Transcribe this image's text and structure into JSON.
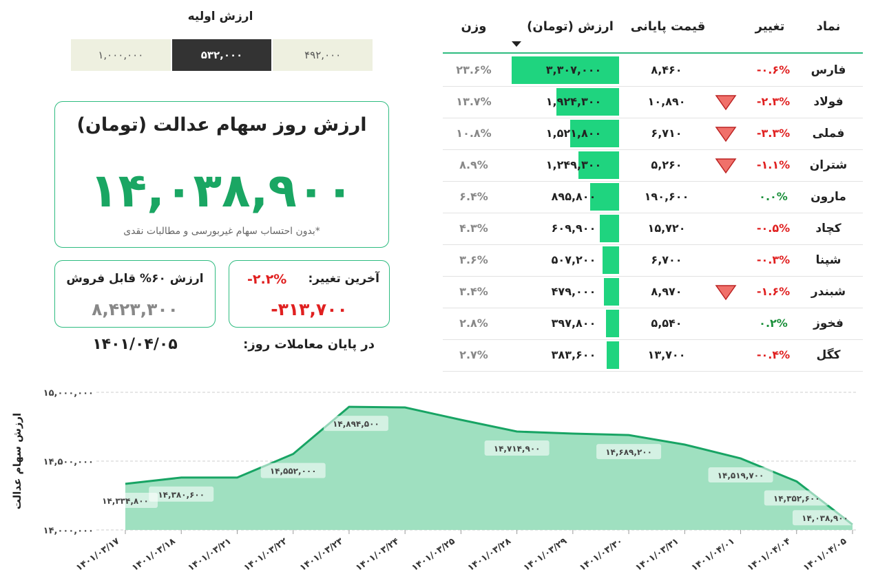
{
  "initial_value": {
    "label": "ارزش اولیه",
    "options": [
      "۱,۰۰۰,۰۰۰",
      "۵۳۲,۰۰۰",
      "۴۹۲,۰۰۰"
    ],
    "selected_index": 1
  },
  "main_card": {
    "title": "ارزش روز سهام عدالت (تومان)",
    "value": "۱۴,۰۳۸,۹۰۰",
    "note": "*بدون احتساب سهام غیربورسی و مطالبات نقدی"
  },
  "change_card": {
    "label": "آخرین تغییر:",
    "percent": "-۲.۲%",
    "amount": "-۳۱۳,۷۰۰"
  },
  "sellable_card": {
    "label": "ارزش ۶۰% قابل فروش",
    "amount": "۸,۴۲۳,۳۰۰"
  },
  "trading_day": {
    "label": "در پایان معاملات روز:",
    "date": "۱۴۰۱/۰۴/۰۵"
  },
  "table": {
    "headers": {
      "symbol": "نماد",
      "change": "تغییر",
      "final_price": "قیمت پایانی",
      "value": "ارزش (تومان)",
      "weight": "وزن"
    },
    "rows": [
      {
        "symbol": "فارس",
        "change": "-۰.۶%",
        "dir": "neg",
        "arrow": false,
        "price": "۸,۴۶۰",
        "value": "۳,۳۰۷,۰۰۰",
        "weight": "۲۳.۶%",
        "share": 0.236
      },
      {
        "symbol": "فولاد",
        "change": "-۲.۳%",
        "dir": "neg",
        "arrow": true,
        "price": "۱۰,۸۹۰",
        "value": "۱,۹۲۴,۳۰۰",
        "weight": "۱۳.۷%",
        "share": 0.137
      },
      {
        "symbol": "فملی",
        "change": "-۳.۳%",
        "dir": "neg",
        "arrow": true,
        "price": "۶,۷۱۰",
        "value": "۱,۵۲۱,۸۰۰",
        "weight": "۱۰.۸%",
        "share": 0.108
      },
      {
        "symbol": "شتران",
        "change": "-۱.۱%",
        "dir": "neg",
        "arrow": true,
        "price": "۵,۲۶۰",
        "value": "۱,۲۴۹,۳۰۰",
        "weight": "۸.۹%",
        "share": 0.089
      },
      {
        "symbol": "مارون",
        "change": "۰.۰%",
        "dir": "pos",
        "arrow": false,
        "price": "۱۹۰,۶۰۰",
        "value": "۸۹۵,۸۰۰",
        "weight": "۶.۴%",
        "share": 0.064
      },
      {
        "symbol": "کچاد",
        "change": "-۰.۵%",
        "dir": "neg",
        "arrow": false,
        "price": "۱۵,۷۲۰",
        "value": "۶۰۹,۹۰۰",
        "weight": "۴.۳%",
        "share": 0.043
      },
      {
        "symbol": "شپنا",
        "change": "-۰.۳%",
        "dir": "neg",
        "arrow": false,
        "price": "۶,۷۰۰",
        "value": "۵۰۷,۲۰۰",
        "weight": "۳.۶%",
        "share": 0.036
      },
      {
        "symbol": "شبندر",
        "change": "-۱.۶%",
        "dir": "neg",
        "arrow": true,
        "price": "۸,۹۷۰",
        "value": "۴۷۹,۰۰۰",
        "weight": "۳.۴%",
        "share": 0.034
      },
      {
        "symbol": "فخوز",
        "change": "۰.۲%",
        "dir": "pos",
        "arrow": false,
        "price": "۵,۵۴۰",
        "value": "۳۹۷,۸۰۰",
        "weight": "۲.۸%",
        "share": 0.028
      },
      {
        "symbol": "کگل",
        "change": "-۰.۴%",
        "dir": "neg",
        "arrow": false,
        "price": "۱۳,۷۰۰",
        "value": "۳۸۳,۶۰۰",
        "weight": "۲.۷%",
        "share": 0.027
      }
    ]
  },
  "colors": {
    "accent": "#2dbb7f",
    "bar": "#1fd47f",
    "negative": "#e02020",
    "positive": "#1a8f3a",
    "area_fill": "#9fe0c0",
    "line": "#18a464"
  },
  "chart_data": {
    "type": "area",
    "ylabel": "ارزش سهام عدالت",
    "ylim": [
      14000000,
      15000000
    ],
    "y_ticks": [
      "۱۴,۰۰۰,۰۰۰",
      "۱۴,۵۰۰,۰۰۰",
      "۱۵,۰۰۰,۰۰۰"
    ],
    "y_tick_values": [
      14000000,
      14500000,
      15000000
    ],
    "grid": true,
    "x": [
      "۱۴۰۱/۰۳/۱۷",
      "۱۴۰۱/۰۳/۱۸",
      "۱۴۰۱/۰۳/۲۱",
      "۱۴۰۱/۰۳/۲۲",
      "۱۴۰۱/۰۳/۲۳",
      "۱۴۰۱/۰۳/۲۴",
      "۱۴۰۱/۰۳/۲۵",
      "۱۴۰۱/۰۳/۲۸",
      "۱۴۰۱/۰۳/۲۹",
      "۱۴۰۱/۰۳/۳۰",
      "۱۴۰۱/۰۳/۳۱",
      "۱۴۰۱/۰۴/۰۱",
      "۱۴۰۱/۰۴/۰۴",
      "۱۴۰۱/۰۴/۰۵"
    ],
    "values": [
      14334800,
      14380600,
      14380600,
      14552000,
      14894500,
      14890000,
      14800000,
      14714900,
      14700000,
      14689200,
      14620000,
      14519700,
      14352600,
      14038900
    ],
    "data_labels": [
      {
        "index": 0,
        "text": "۱۴,۳۳۴,۸۰۰"
      },
      {
        "index": 1,
        "text": "۱۴,۳۸۰,۶۰۰"
      },
      {
        "index": 3,
        "text": "۱۴,۵۵۲,۰۰۰"
      },
      {
        "index": 4,
        "text": "۱۴,۸۹۴,۵۰۰"
      },
      {
        "index": 7,
        "text": "۱۴,۷۱۴,۹۰۰"
      },
      {
        "index": 9,
        "text": "۱۴,۶۸۹,۲۰۰"
      },
      {
        "index": 11,
        "text": "۱۴,۵۱۹,۷۰۰"
      },
      {
        "index": 12,
        "text": "۱۴,۳۵۲,۶۰۰"
      },
      {
        "index": 13,
        "text": "۱۴,۰۳۸,۹۰۰"
      }
    ]
  }
}
